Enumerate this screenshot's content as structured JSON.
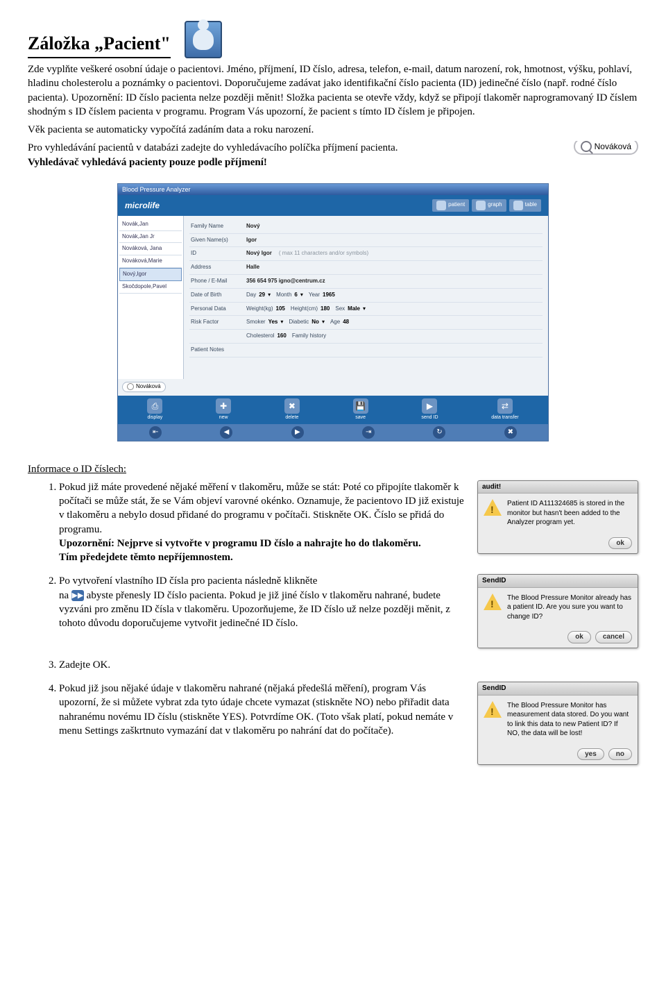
{
  "heading": "Záložka „Pacient\"",
  "intro": "Zde vyplňte veškeré osobní údaje o pacientovi. Jméno, příjmení, ID číslo, adresa, telefon, e-mail, datum narození, rok, hmotnost, výšku, pohlaví, hladinu cholesterolu a poznámky o pacientovi. Doporučujeme zadávat jako identifikační číslo pacienta (ID) jedinečné číslo (např. rodné číslo pacienta). Upozornění: ID číslo pacienta nelze později měnit! Složka pacienta se otevře vždy, když se připojí tlakoměr naprogramovaný ID číslem shodným s ID číslem pacienta v programu. Program Vás upozorní, že pacient s tímto ID číslem je připojen.",
  "age_line": "Věk pacienta se automaticky vypočítá zadáním data a roku narození.",
  "search_line_prefix": "Pro vyhledávání pacientů v databázi zadejte do vyhledávacího políčka příjmení pacienta.",
  "search_line_bold": "Vyhledávač vyhledává pacienty pouze podle příjmení!",
  "search_example": "Nováková",
  "app": {
    "title": "Blood Pressure Analyzer",
    "brand": "microlife",
    "main_tabs": [
      "patient",
      "graph",
      "table"
    ],
    "sidebar": [
      "Novák,Jan",
      "Novák,Jan Jr",
      "Nováková, Jana",
      "Nováková,Marie",
      "Nový,Igor",
      "Skočdopole,Pavel"
    ],
    "sidebar_selected": 4,
    "form": [
      {
        "label": "Family Name",
        "value": "Nový"
      },
      {
        "label": "Given Name(s)",
        "value": "Igor"
      },
      {
        "label": "ID",
        "value": "Nový Igor",
        "hint": "( max 11 characters and/or symbols)"
      },
      {
        "label": "Address",
        "value": "Halle"
      },
      {
        "label": "Phone / E-Mail",
        "value": "356 654 975 igno@centrum.cz"
      }
    ],
    "dob": {
      "label": "Date of Birth",
      "day_k": "Day",
      "day_v": "29",
      "month_k": "Month",
      "month_v": "6",
      "year_k": "Year",
      "year_v": "1965"
    },
    "personal": {
      "label": "Personal Data",
      "weight_k": "Weight(kg)",
      "weight_v": "105",
      "height_k": "Height(cm)",
      "height_v": "180",
      "sex_k": "Sex",
      "sex_v": "Male"
    },
    "risk": {
      "label": "Risk Factor",
      "smoker_k": "Smoker",
      "smoker_v": "Yes",
      "diabetic_k": "Diabetic",
      "diabetic_v": "No",
      "age_k": "Age",
      "age_v": "48"
    },
    "chol": {
      "label": "",
      "chol_k": "Cholesterol",
      "chol_v": "160",
      "fam_k": "Family history"
    },
    "notes": {
      "label": "Patient Notes"
    },
    "search_bottom": "Nováková",
    "bottombar1": [
      "display",
      "new",
      "delete",
      "save",
      "send ID",
      "data transfer"
    ],
    "bottombar1_glyph": [
      "⎙",
      "✚",
      "✖",
      "💾",
      "▶",
      "⇄"
    ],
    "bottombar2_glyph": [
      "⇤",
      "◀",
      "▶",
      "⇥",
      "↻",
      "✖"
    ]
  },
  "info_heading": "Informace o ID číslech:",
  "info": [
    {
      "text": "Pokud již máte provedené nějaké měření v tlakoměru, může se stát: Poté co  připojíte tlakoměr k počítači se může stát, že se Vám objeví varovné okénko. Oznamuje, že pacientovo ID již existuje v tlakoměru a nebylo dosud přidané do programu v počítači. Stiskněte OK. Číslo se přidá do programu.",
      "bold1": "Upozornění: Nejprve si vytvořte v programu ID číslo a nahrajte ho do tlakoměru.",
      "bold2": "Tím předejdete těmto nepříjemnostem.",
      "dialog": {
        "title": "audit!",
        "msg": "Patient ID A111324685 is stored in the monitor but hasn't been added to the Analyzer program yet.",
        "buttons": [
          "ok"
        ]
      }
    },
    {
      "pre": "Po vytvoření vlastního ID čísla pro pacienta následně klikněte",
      "mid_a": "na",
      "mid_b": " abyste přenesly ID číslo pacienta. Pokud je již jiné číslo v tlakoměru nahrané, budete vyzváni pro změnu ID čísla v tlakoměru. Upozorňujeme, že ID číslo už nelze později měnit, z tohoto důvodu doporučujeme vytvořit jedinečné ID číslo.",
      "dialog": {
        "title": "SendID",
        "msg": "The Blood Pressure Monitor already has a patient ID. Are you sure you want to change ID?",
        "buttons": [
          "ok",
          "cancel"
        ]
      }
    },
    {
      "text": "Zadejte OK."
    },
    {
      "text": "Pokud již jsou nějaké údaje v tlakoměru nahrané (nějaká předešlá měření), program Vás upozorní, že si můžete vybrat zda tyto údaje chcete vymazat (stiskněte NO) nebo přiřadit data nahranému novému ID číslu (stiskněte YES). Potvrdíme OK. (Toto však platí, pokud nemáte v menu Settings zaškrtnuto vymazání dat v tlakoměru po nahrání dat do počítače).",
      "dialog": {
        "title": "SendID",
        "msg": "The Blood Pressure Monitor has measurement data stored. Do you want to link this data to new Patient ID? If NO, the data will be lost!",
        "buttons": [
          "yes",
          "no"
        ]
      }
    }
  ]
}
